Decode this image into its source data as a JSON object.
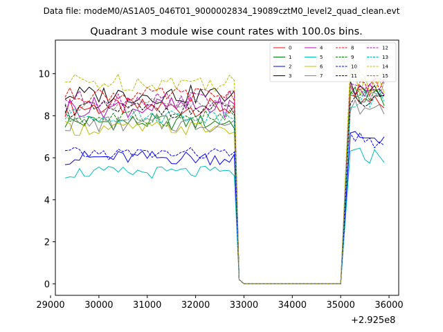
{
  "chart_data": {
    "type": "line",
    "suptitle": "Data file: modeM0/AS1A05_046T01_9000002834_19089cztM0_level2_quad_clean.evt",
    "title": "Quadrant 3 module wise count rates with 100.0s bins.",
    "xlabel": "",
    "ylabel": "",
    "x_offset_label": "+2.925e8",
    "xlim": [
      29100,
      36200
    ],
    "ylim": [
      -0.55,
      11.6
    ],
    "x_ticks": [
      29000,
      30000,
      31000,
      32000,
      33000,
      34000,
      35000,
      36000
    ],
    "y_ticks": [
      0,
      2,
      4,
      6,
      8,
      10
    ],
    "legend_position": "top-right",
    "segments": [
      [
        29300,
        32800
      ],
      [
        35200,
        35900
      ]
    ],
    "series": [
      {
        "name": "0",
        "color": "#ff0000",
        "dash": "solid",
        "level1": 8.4,
        "amp1": 0.45,
        "level2": 8.6,
        "amp2": 0.4
      },
      {
        "name": "1",
        "color": "#008000",
        "dash": "solid",
        "level1": 7.7,
        "amp1": 0.4,
        "level2": 8.9,
        "amp2": 0.5
      },
      {
        "name": "2",
        "color": "#0000ff",
        "dash": "solid",
        "level1": 6.0,
        "amp1": 0.35,
        "level2": 7.0,
        "amp2": 0.4
      },
      {
        "name": "3",
        "color": "#000000",
        "dash": "solid",
        "level1": 9.0,
        "amp1": 0.45,
        "level2": 9.3,
        "amp2": 0.4
      },
      {
        "name": "4",
        "color": "#bf00bf",
        "dash": "solid",
        "level1": 8.4,
        "amp1": 0.5,
        "level2": 9.2,
        "amp2": 0.5
      },
      {
        "name": "5",
        "color": "#00bfbf",
        "dash": "solid",
        "level1": 5.3,
        "amp1": 0.3,
        "level2": 6.1,
        "amp2": 0.4
      },
      {
        "name": "6",
        "color": "#bfbf00",
        "dash": "solid",
        "level1": 7.4,
        "amp1": 0.35,
        "level2": 9.4,
        "amp2": 0.6
      },
      {
        "name": "7",
        "color": "#808080",
        "dash": "solid",
        "level1": 7.6,
        "amp1": 0.4,
        "level2": 8.4,
        "amp2": 0.4
      },
      {
        "name": "8",
        "color": "#ff0000",
        "dash": "dashed",
        "level1": 9.0,
        "amp1": 0.35,
        "level2": 9.4,
        "amp2": 0.5
      },
      {
        "name": "9",
        "color": "#008000",
        "dash": "dashed",
        "level1": 7.9,
        "amp1": 0.4,
        "level2": 9.0,
        "amp2": 0.4
      },
      {
        "name": "10",
        "color": "#0000ff",
        "dash": "dashed",
        "level1": 6.2,
        "amp1": 0.3,
        "level2": 6.8,
        "amp2": 0.4
      },
      {
        "name": "11",
        "color": "#000000",
        "dash": "dashed",
        "level1": 8.3,
        "amp1": 0.4,
        "level2": 8.6,
        "amp2": 0.4
      },
      {
        "name": "12",
        "color": "#bf00bf",
        "dash": "dashed",
        "level1": 8.8,
        "amp1": 0.4,
        "level2": 9.5,
        "amp2": 0.4
      },
      {
        "name": "13",
        "color": "#00bfbf",
        "dash": "dashed",
        "level1": 8.0,
        "amp1": 0.35,
        "level2": 8.8,
        "amp2": 0.4
      },
      {
        "name": "14",
        "color": "#bfbf00",
        "dash": "dashed",
        "level1": 9.6,
        "amp1": 0.45,
        "level2": 10.0,
        "amp2": 0.6
      },
      {
        "name": "15",
        "color": "#808080",
        "dash": "dashed",
        "level1": 8.5,
        "amp1": 0.35,
        "level2": 9.2,
        "amp2": 0.4
      }
    ]
  }
}
